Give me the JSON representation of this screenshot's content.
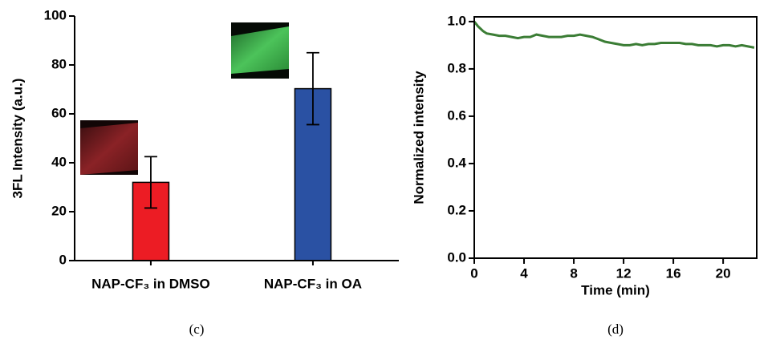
{
  "chart_data": [
    {
      "type": "bar",
      "caption": "(c)",
      "ylabel": "3FL Intensity (a.u.)",
      "categories": [
        "NAP-CF₃ in DMSO",
        "NAP-CF₃ in OA"
      ],
      "values": [
        32,
        70.3
      ],
      "errors": [
        10.5,
        14.7
      ],
      "colors": [
        "#ec1c24",
        "#2a51a3"
      ],
      "ylim": [
        0,
        100
      ],
      "yticks": [
        0,
        20,
        40,
        60,
        80,
        100
      ]
    },
    {
      "type": "line",
      "caption": "(d)",
      "xlabel": "Time (min)",
      "ylabel": "Normalized intensity",
      "x": [
        0,
        0.3,
        0.7,
        1,
        1.5,
        2,
        2.5,
        3,
        3.5,
        4,
        4.5,
        5,
        5.5,
        6,
        6.5,
        7,
        7.5,
        8,
        8.5,
        9,
        9.5,
        10,
        10.5,
        11,
        11.5,
        12,
        12.5,
        13,
        13.5,
        14,
        14.5,
        15,
        15.5,
        16,
        16.5,
        17,
        17.5,
        18,
        18.5,
        19,
        19.5,
        20,
        20.5,
        21,
        21.5,
        22,
        22.5
      ],
      "values": [
        1.0,
        0.98,
        0.96,
        0.95,
        0.945,
        0.94,
        0.94,
        0.935,
        0.93,
        0.935,
        0.935,
        0.945,
        0.94,
        0.935,
        0.935,
        0.935,
        0.94,
        0.94,
        0.945,
        0.94,
        0.935,
        0.925,
        0.915,
        0.91,
        0.905,
        0.9,
        0.9,
        0.905,
        0.9,
        0.905,
        0.905,
        0.91,
        0.91,
        0.91,
        0.91,
        0.905,
        0.905,
        0.9,
        0.9,
        0.9,
        0.895,
        0.9,
        0.9,
        0.895,
        0.9,
        0.895,
        0.89
      ],
      "color": "#3b7d35",
      "xlim": [
        0,
        22.7
      ],
      "xticks": [
        0,
        4,
        8,
        12,
        16,
        20
      ],
      "ylim": [
        0,
        1.02
      ],
      "yticks": [
        {
          "value": 0,
          "label": "0.0"
        },
        0.2,
        0.4,
        0.6,
        0.8,
        {
          "value": 1,
          "label": "1.0"
        }
      ]
    }
  ]
}
